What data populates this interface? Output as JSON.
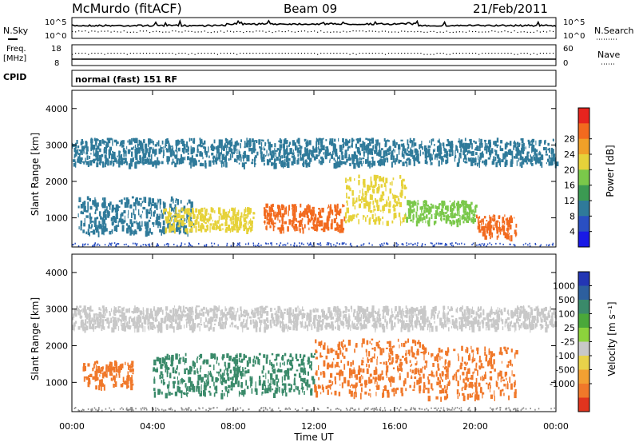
{
  "header": {
    "station": "McMurdo (fitACF)",
    "beam": "Beam 09",
    "date": "21/Feb/2011"
  },
  "top_panels": {
    "nsky_label": "N.Sky",
    "nsky_ticks": [
      "10^5",
      "10^0"
    ],
    "nsearch_label": "N.Search",
    "nsearch_ticks": [
      "10^5",
      "10^0"
    ],
    "freq_label_1": "Freq.",
    "freq_label_2": "[MHz]",
    "freq_ticks": [
      "18",
      "8"
    ],
    "nave_label": "Nave",
    "nave_ticks": [
      "60",
      "0"
    ],
    "cpid_label": "CPID",
    "cpid_value": "normal (fast) 151 RF"
  },
  "colors": {
    "power_scale": [
      "#1919e6",
      "#2a4fc2",
      "#2f7a9a",
      "#3b9a52",
      "#7ac84a",
      "#e6d23a",
      "#f0a028",
      "#f26a1e",
      "#e6241e"
    ],
    "velocity_scale": [
      "#2336b4",
      "#2d5f9e",
      "#3a8a6a",
      "#4aa83a",
      "#8cd23c",
      "#c8c8c8",
      "#e8d24a",
      "#f2a032",
      "#f0782a",
      "#e0341e"
    ]
  },
  "chart_data": [
    {
      "type": "heatmap",
      "name": "power",
      "title": "",
      "xlabel": "Time UT",
      "ylabel": "Slant Range [km]",
      "xlim": [
        "00:00",
        "00:00"
      ],
      "xticks": [
        "00:00",
        "04:00",
        "08:00",
        "12:00",
        "16:00",
        "20:00",
        "00:00"
      ],
      "ylim": [
        200,
        4500
      ],
      "yticks": [
        1000,
        2000,
        3000,
        4000
      ],
      "colorbar_label": "Power [dB]",
      "colorbar_ticks": [
        4,
        8,
        12,
        16,
        20,
        24,
        28
      ],
      "scatter_bands": [
        {
          "t0": 0.3,
          "t1": 6.0,
          "r0": 600,
          "r1": 1600,
          "level": 8
        },
        {
          "t0": 4.5,
          "t1": 9.0,
          "r0": 700,
          "r1": 1300,
          "level": 20
        },
        {
          "t0": 9.5,
          "t1": 13.5,
          "r0": 700,
          "r1": 1400,
          "level": 26
        },
        {
          "t0": 13.5,
          "t1": 16.5,
          "r0": 900,
          "r1": 2200,
          "level": 18
        },
        {
          "t0": 16.5,
          "t1": 20.0,
          "r0": 900,
          "r1": 1500,
          "level": 16
        },
        {
          "t0": 20.0,
          "t1": 22.0,
          "r0": 500,
          "r1": 1100,
          "level": 27
        },
        {
          "t0": 0.0,
          "t1": 24.0,
          "r0": 2500,
          "r1": 3200,
          "level": 8
        }
      ]
    },
    {
      "type": "heatmap",
      "name": "velocity",
      "title": "",
      "xlabel": "Time UT",
      "ylabel": "Slant Range [km]",
      "xlim": [
        "00:00",
        "00:00"
      ],
      "xticks": [
        "00:00",
        "04:00",
        "08:00",
        "12:00",
        "16:00",
        "20:00",
        "00:00"
      ],
      "ylim": [
        200,
        4500
      ],
      "yticks": [
        1000,
        2000,
        3000,
        4000
      ],
      "colorbar_label": "Velocity [m s⁻¹]",
      "colorbar_ticks": [
        "1000",
        "500",
        "100",
        "25",
        "-25",
        "-100",
        "-500",
        "-1000"
      ],
      "scatter_bands": [
        {
          "t0": 0.5,
          "t1": 3.0,
          "r0": 900,
          "r1": 1600,
          "level": -300
        },
        {
          "t0": 4.0,
          "t1": 12.0,
          "r0": 700,
          "r1": 1800,
          "level": 400
        },
        {
          "t0": 12.0,
          "t1": 17.5,
          "r0": 700,
          "r1": 2200,
          "level": -300
        },
        {
          "t0": 17.5,
          "t1": 22.0,
          "r0": 600,
          "r1": 2000,
          "level": -400
        },
        {
          "t0": 0.0,
          "t1": 24.0,
          "r0": 2500,
          "r1": 3100,
          "level": 0
        }
      ]
    }
  ]
}
